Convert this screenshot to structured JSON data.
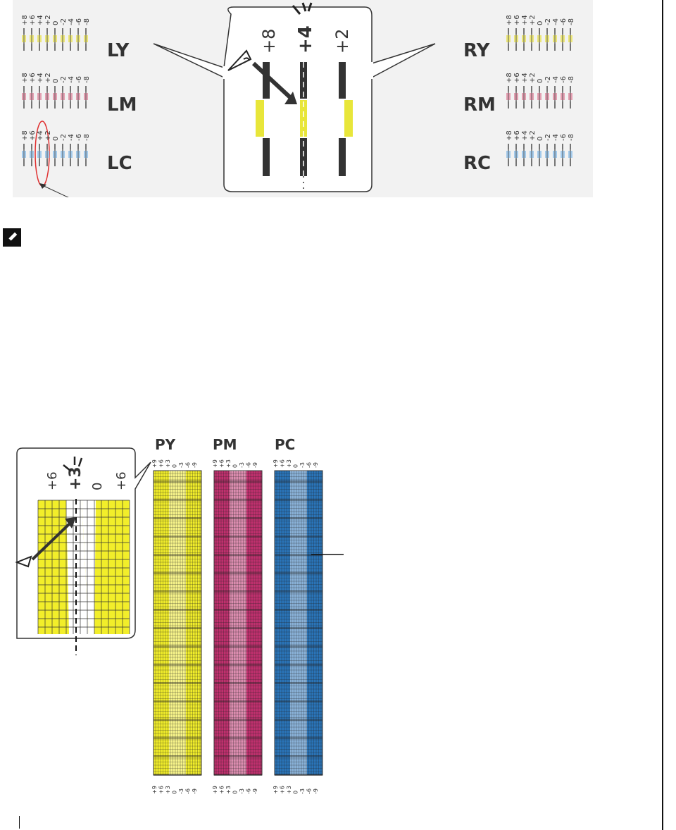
{
  "figure1": {
    "group_labels": [
      "LY",
      "LM",
      "LC",
      "RY",
      "RM",
      "RC"
    ],
    "ticks": [
      "+8",
      "+6",
      "+4",
      "+2",
      "0",
      "-2",
      "-4",
      "-6",
      "-8"
    ],
    "zoom_ticks": [
      "+8",
      "+4",
      "+2"
    ],
    "colors": {
      "yellow": "#e8e25a",
      "magenta": "#e08aa0",
      "cyan": "#8fbfe8",
      "circle": "#e03030"
    }
  },
  "figure2": {
    "strip_labels": [
      "PY",
      "PM",
      "PC"
    ],
    "ticks": [
      "+9",
      "+6",
      "+3",
      "0",
      "-3",
      "-6",
      "-9"
    ],
    "zoom_ticks": [
      "+6",
      "+3",
      "0",
      "+6"
    ],
    "colors": {
      "yellow": "#f0ec2a",
      "magenta": "#c0306e",
      "cyan": "#2a74b8"
    }
  },
  "icons": {
    "note": "pencil-note-icon"
  }
}
